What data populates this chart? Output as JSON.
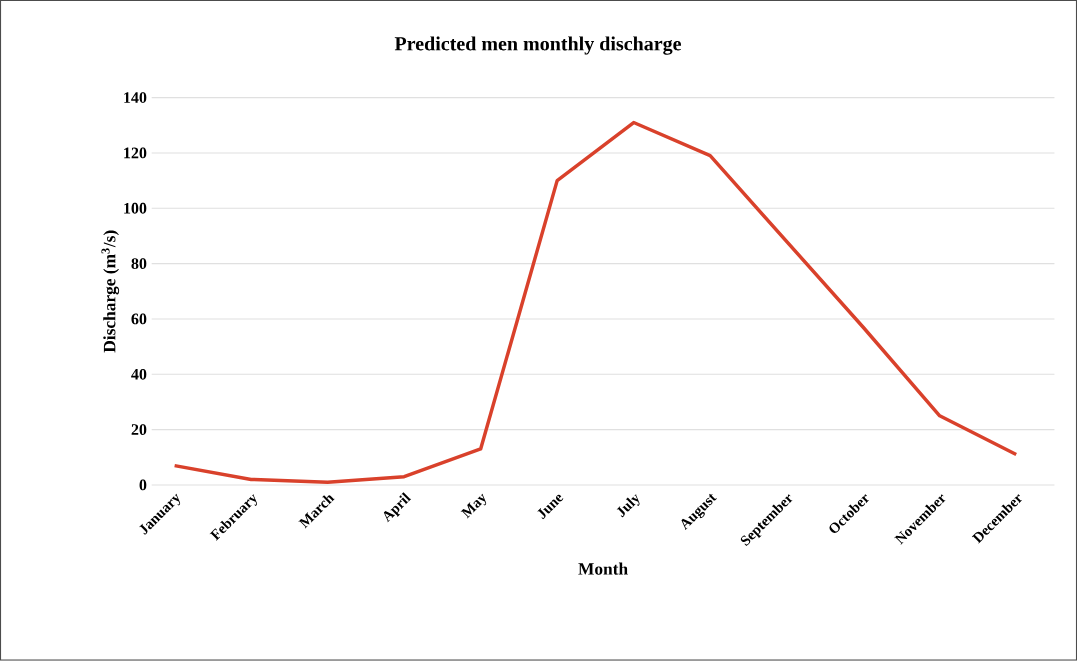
{
  "chart_data": {
    "type": "line",
    "title": "Predicted men monthly discharge",
    "xlabel": "Month",
    "ylabel": "Discharge (m$^{3}$/s)",
    "categories": [
      "January",
      "February",
      "March",
      "April",
      "May",
      "June",
      "July",
      "August",
      "September",
      "October",
      "November",
      "December"
    ],
    "series": [
      {
        "color": "#d9412b",
        "values": [
          7,
          2,
          1,
          3,
          13,
          110,
          131,
          119,
          88,
          57,
          25,
          11
        ]
      }
    ],
    "ylim": [
      0,
      140
    ],
    "yticks": [
      0,
      20,
      40,
      60,
      80,
      100,
      120,
      140
    ],
    "grid": "y",
    "marker": "none",
    "line_style": "solid"
  }
}
